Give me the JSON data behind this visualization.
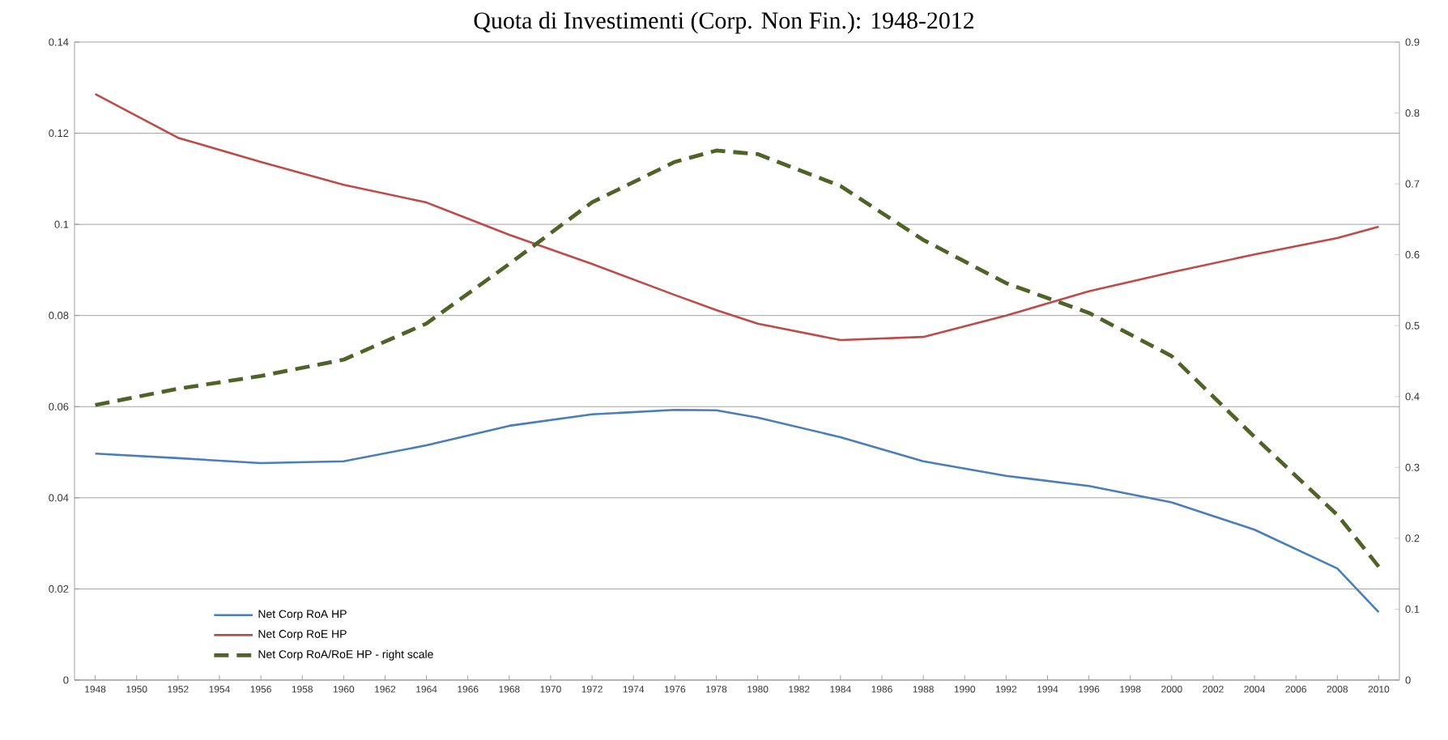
{
  "chart_data": {
    "type": "line",
    "title": "Quota di Investimenti (Corp. Non Fin.): 1948-2012",
    "x": [
      1948,
      1952,
      1956,
      1960,
      1964,
      1968,
      1972,
      1976,
      1978,
      1980,
      1984,
      1988,
      1992,
      1996,
      2000,
      2004,
      2008,
      2010
    ],
    "series": [
      {
        "name": "Net Corp RoA HP",
        "color": "#4a7ebb",
        "values": [
          0.0497,
          0.0487,
          0.0476,
          0.048,
          0.0515,
          0.0558,
          0.0583,
          0.0593,
          0.0592,
          0.0576,
          0.0533,
          0.048,
          0.0448,
          0.0426,
          0.039,
          0.033,
          0.0245,
          0.0149
        ]
      },
      {
        "name": "Net Corp RoE HP",
        "color": "#be4b48",
        "values": [
          0.1286,
          0.119,
          0.1137,
          0.1087,
          0.1048,
          0.0977,
          0.0913,
          0.0845,
          0.0812,
          0.0782,
          0.0746,
          0.0753,
          0.08,
          0.0853,
          0.0895,
          0.0934,
          0.097,
          0.0995
        ]
      },
      {
        "name": "Net Corp RoA/RoE HP - right scale",
        "color": "#4f6228",
        "axis": "y2",
        "line_style": "dashed",
        "values": [
          0.388,
          0.411,
          0.429,
          0.452,
          0.503,
          0.587,
          0.674,
          0.731,
          0.747,
          0.742,
          0.697,
          0.621,
          0.56,
          0.518,
          0.457,
          0.343,
          0.233,
          0.16
        ]
      }
    ],
    "xlim": [
      1947,
      2011
    ],
    "xticks": [
      1948,
      1950,
      1952,
      1954,
      1956,
      1958,
      1960,
      1962,
      1964,
      1966,
      1968,
      1970,
      1972,
      1974,
      1976,
      1978,
      1980,
      1982,
      1984,
      1986,
      1988,
      1990,
      1992,
      1994,
      1996,
      1998,
      2000,
      2002,
      2004,
      2006,
      2008,
      2010
    ],
    "ylim": [
      0,
      0.14
    ],
    "yticks": [
      0,
      0.02,
      0.04,
      0.06,
      0.08,
      0.1,
      0.12,
      0.14
    ],
    "y2lim": [
      0,
      0.9
    ],
    "y2ticks": [
      0,
      0.1,
      0.2,
      0.3,
      0.4,
      0.5,
      0.6,
      0.7,
      0.8,
      0.9
    ],
    "grid": "y",
    "legend": "bottom left",
    "line_style": "solid"
  }
}
